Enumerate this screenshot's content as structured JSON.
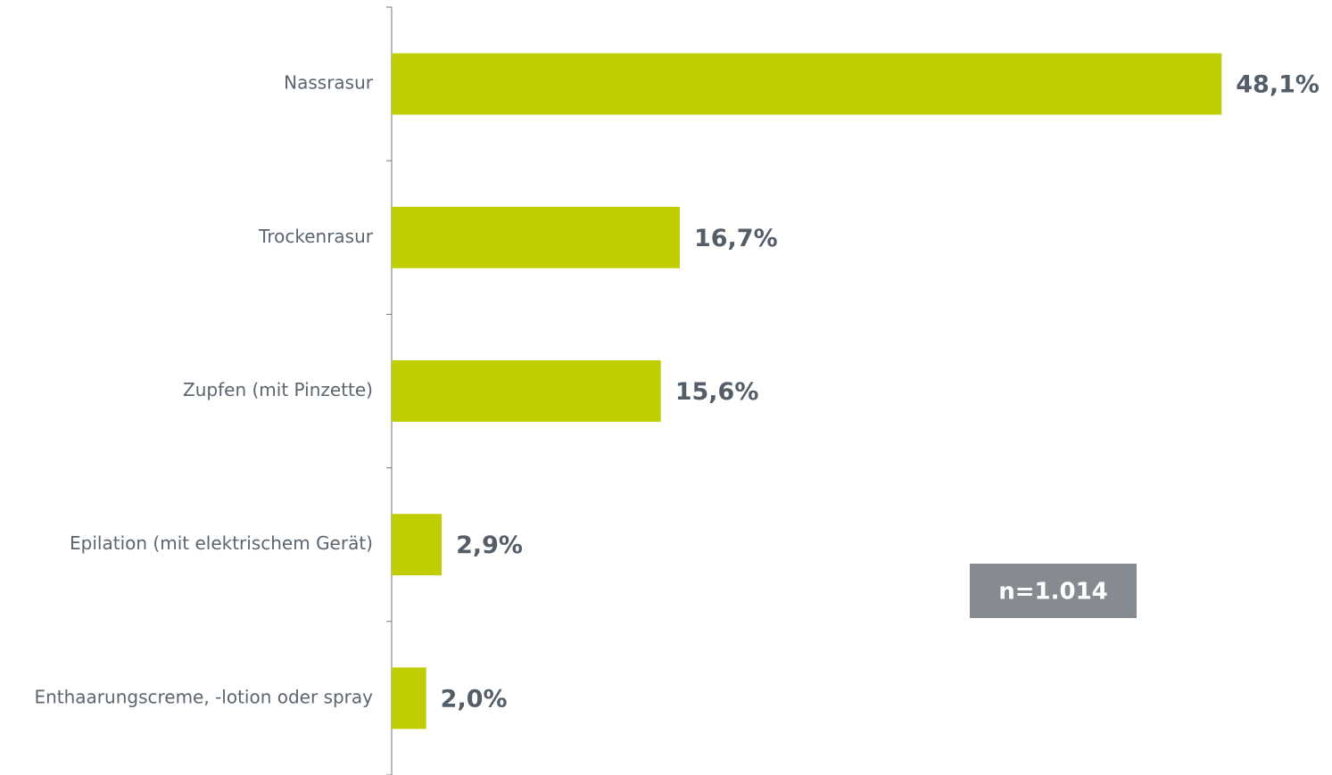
{
  "chart_data": {
    "type": "barh",
    "categories": [
      "Nassrasur",
      "Trockenrasur",
      "Zupfen (mit Pinzette)",
      "Epilation (mit elektrischem Gerät)",
      "Enthaarungscreme, -lotion oder spray"
    ],
    "values": [
      48.1,
      16.7,
      15.6,
      2.9,
      2.0
    ],
    "value_labels": [
      "48,1%",
      "16,7%",
      "15,6%",
      "2,9%",
      "2,0%"
    ],
    "color": "#bfce00",
    "xlim": [
      0,
      50
    ],
    "annotation": "n=1.014"
  }
}
